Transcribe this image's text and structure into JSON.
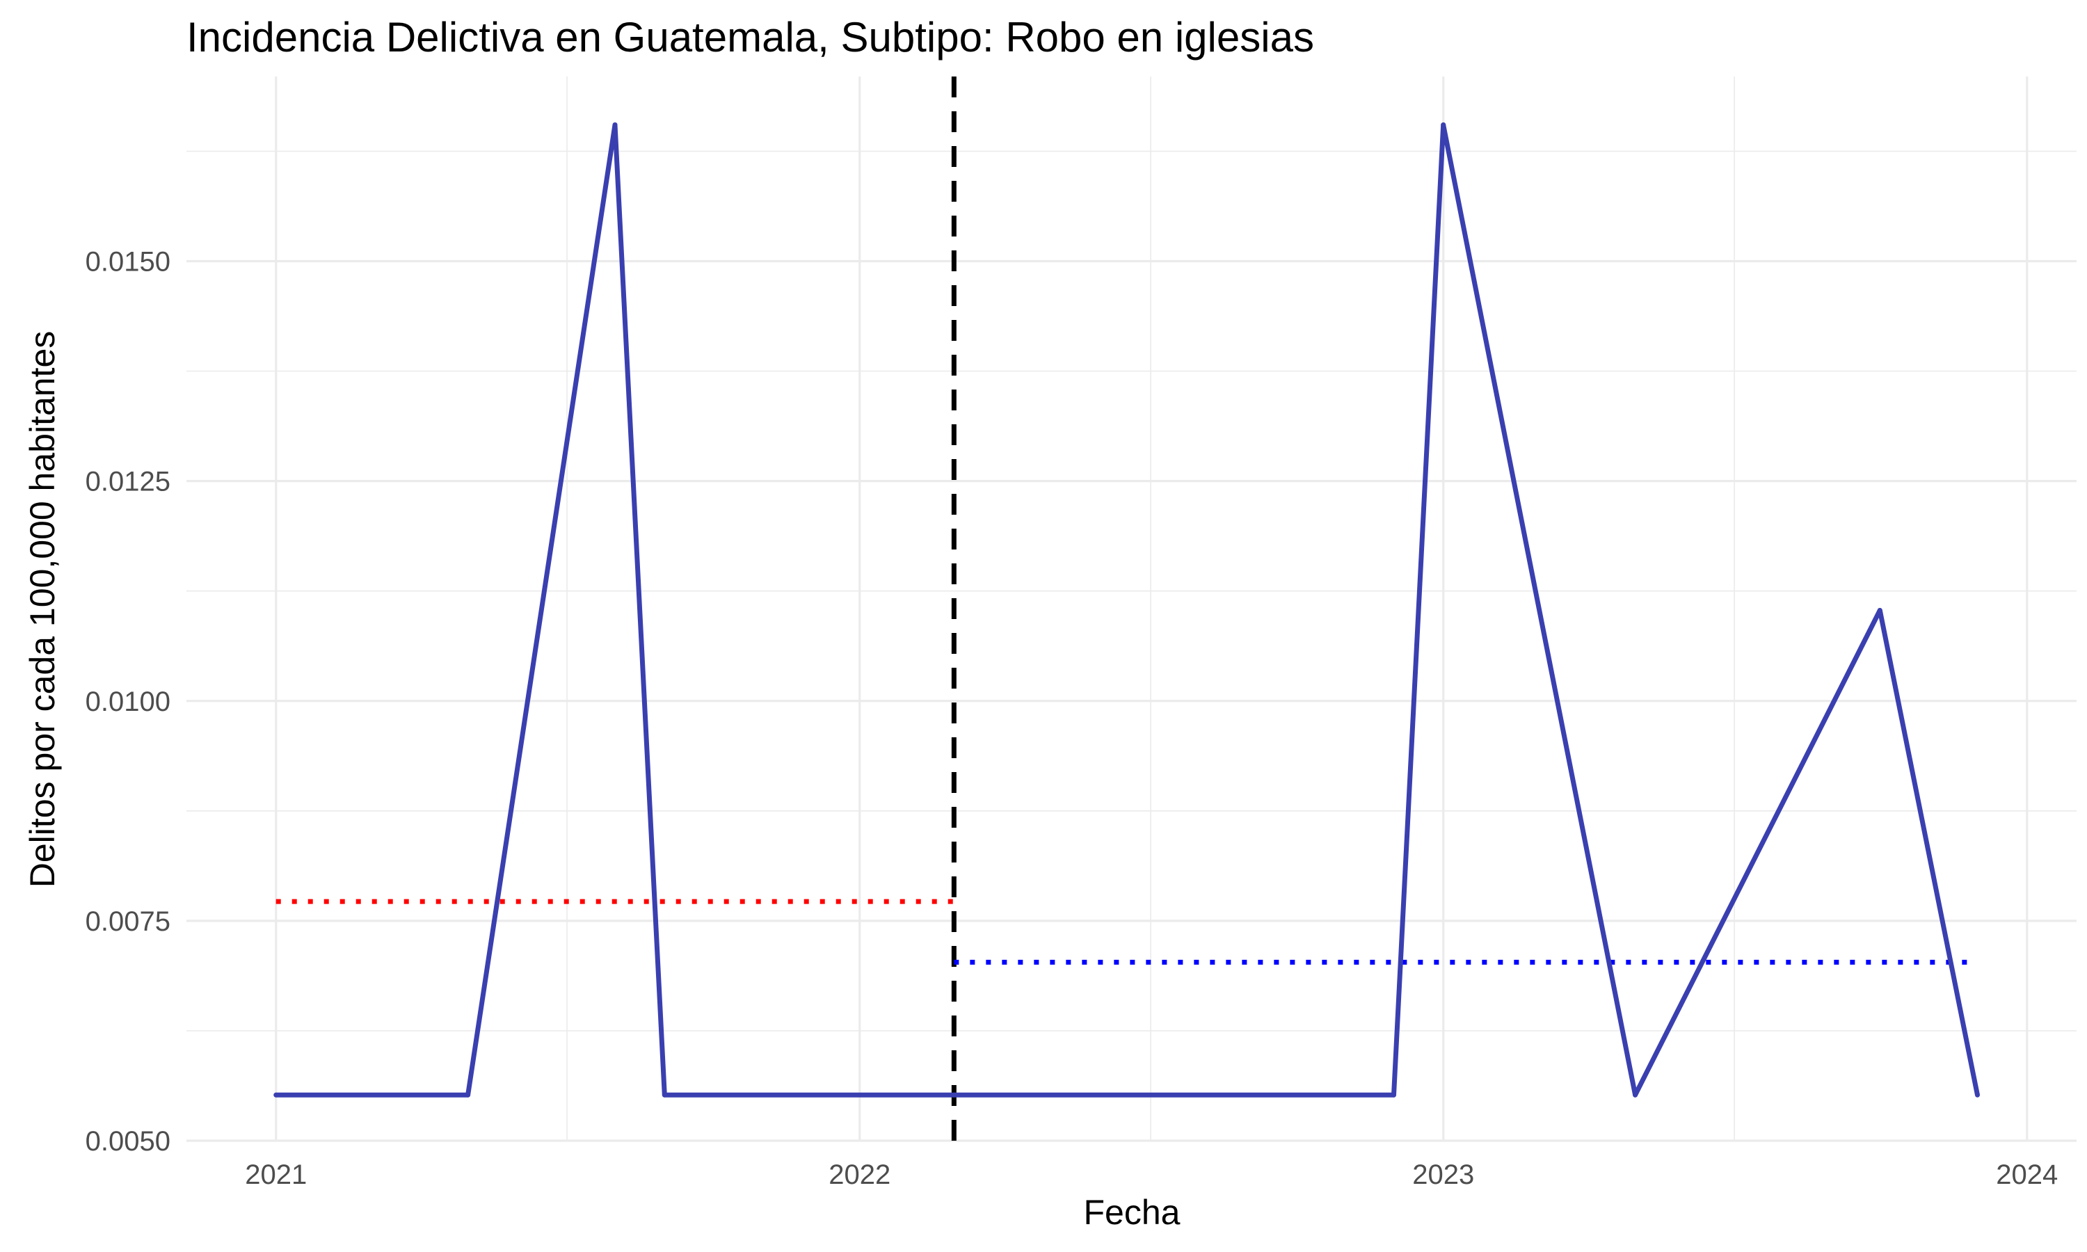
{
  "chart_data": {
    "type": "line",
    "title": "Incidencia Delictiva en Guatemala, Subtipo: Robo en iglesias",
    "xlabel": "Fecha",
    "ylabel": "Delitos por cada 100,000 habitantes",
    "x_ticks": [
      "2021",
      "2022",
      "2023",
      "2024"
    ],
    "y_ticks": [
      "0.0050",
      "0.0075",
      "0.0100",
      "0.0125",
      "0.0150"
    ],
    "xlim": [
      "2020-11-06",
      "2024-02-01"
    ],
    "ylim": [
      0.005,
      0.0171
    ],
    "grid": true,
    "series": [
      {
        "color": "#3a3fb0",
        "x": [
          "2021-01-01",
          "2021-05-01",
          "2021-08-01",
          "2021-09-01",
          "2022-03-01",
          "2022-12-01",
          "2023-01-01",
          "2023-05-01",
          "2023-10-01",
          "2023-12-01"
        ],
        "y": [
          0.00552,
          0.00552,
          0.01655,
          0.00552,
          0.00552,
          0.00552,
          0.01655,
          0.00552,
          0.01103,
          0.00552
        ]
      }
    ],
    "reference_lines": [
      {
        "kind": "vertical",
        "style": "dashed",
        "color": "#000000",
        "x": "2022-03-01"
      },
      {
        "kind": "horizontal",
        "style": "dotted",
        "color": "#ff0000",
        "y": 0.00772,
        "x_from": "2021-01-01",
        "x_to": "2022-03-01"
      },
      {
        "kind": "horizontal",
        "style": "dotted",
        "color": "#0000ff",
        "y": 0.00703,
        "x_from": "2022-03-01",
        "x_to": "2023-12-01"
      }
    ]
  }
}
